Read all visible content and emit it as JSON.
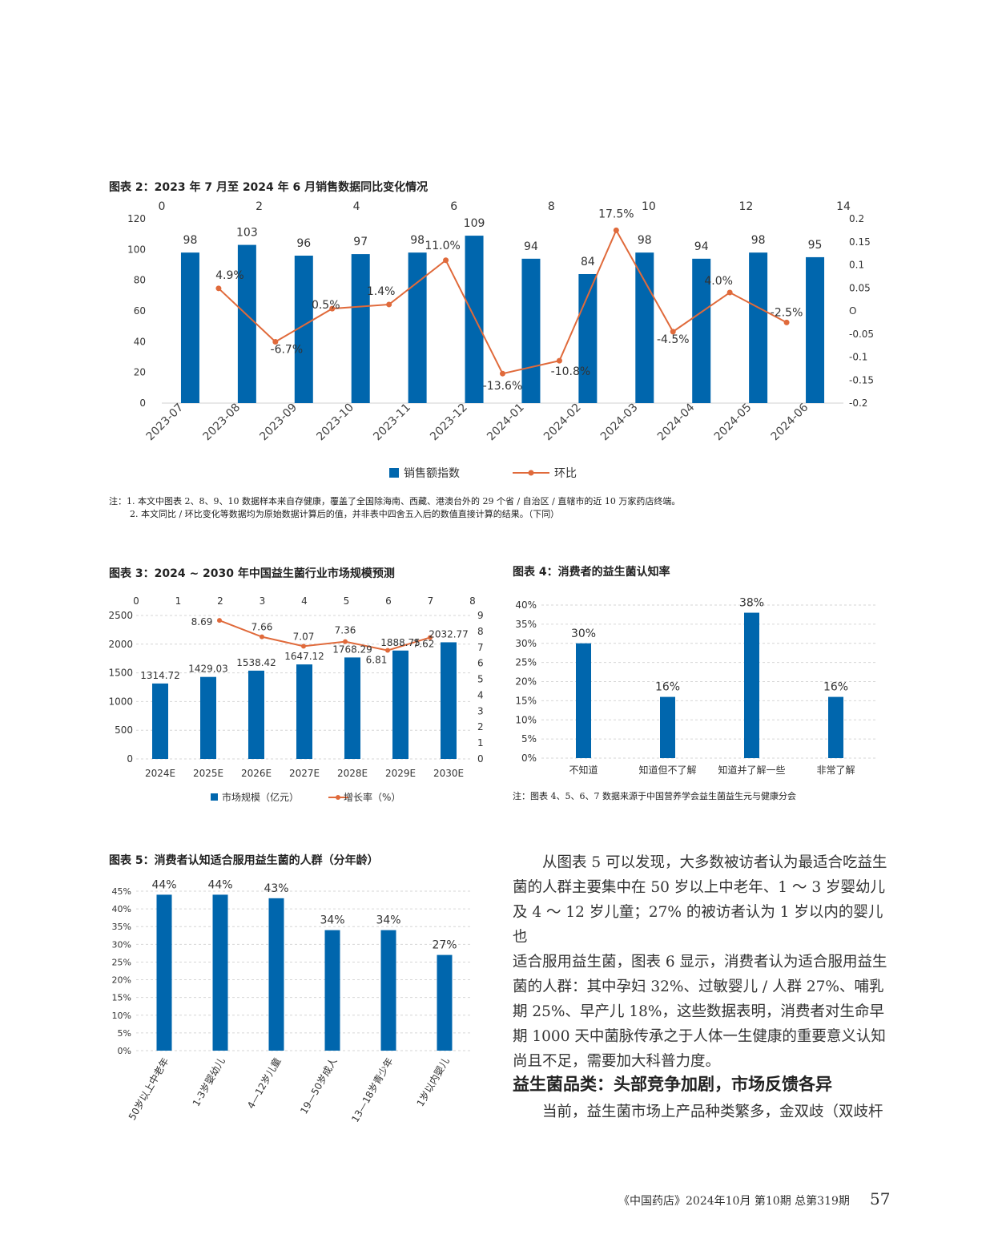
{
  "fig2": {
    "title": "图表 2：2023 年 7 月至 2024 年 6 月销售数据同比变化情况",
    "notes": [
      "注：1. 本文中图表 2、8、9、10 数据样本来自存健康，覆盖了全国除海南、西藏、港澳台外的 29 个省 / 自治区 / 直辖市的近 10 万家药店终端。",
      "2. 本文同比 / 环比变化等数据均为原始数据计算后的值，并非表中四舍五入后的数值直接计算的结果。（下同）"
    ],
    "chart_data": {
      "type": "bar",
      "categories": [
        "2023-07",
        "2023-08",
        "2023-09",
        "2023-10",
        "2023-11",
        "2023-12",
        "2024-01",
        "2024-02",
        "2024-03",
        "2024-04",
        "2024-05",
        "2024-06"
      ],
      "series": [
        {
          "name": "销售额指数",
          "type": "bar",
          "axis": "left",
          "values": [
            98,
            103,
            96,
            97,
            98,
            109,
            94,
            84,
            98,
            94,
            98,
            95
          ],
          "labels": [
            "98",
            "103",
            "96",
            "97",
            "98",
            "109",
            "94",
            "84",
            "98",
            "94",
            "98",
            "95"
          ]
        },
        {
          "name": "环比",
          "type": "line",
          "axis": "right",
          "values": [
            null,
            0.049,
            -0.067,
            0.005,
            0.014,
            0.11,
            -0.136,
            -0.108,
            0.175,
            -0.045,
            0.04,
            -0.025
          ],
          "labels": [
            "",
            "4.9%",
            "-6.7%",
            "0.5%",
            "1.4%",
            "11.0%",
            "-13.6%",
            "-10.8%",
            "17.5%",
            "-4.5%",
            "4.0%",
            "-2.5%"
          ]
        }
      ],
      "ylim_left": [
        0,
        120
      ],
      "yticks_left": [
        "0",
        "20",
        "40",
        "60",
        "80",
        "100",
        "120"
      ],
      "ylim_right": [
        -0.2,
        0.2
      ],
      "yticks_right": [
        "-0.2",
        "-0.15",
        "-0.1",
        "-0.05",
        "O",
        "0.05",
        "0.1",
        "0.15",
        "0.2"
      ],
      "xticks_top": [
        "0",
        "2",
        "4",
        "6",
        "8",
        "10",
        "12",
        "14"
      ],
      "bar_color": "#0066ad",
      "line_color": "#e06a3b",
      "legend": [
        "销售额指数",
        "环比"
      ],
      "legend_position": "bottom"
    }
  },
  "fig3": {
    "title": "图表 3：2024 ~ 2030 年中国益生菌行业市场规模预测",
    "chart_data": {
      "type": "bar",
      "categories": [
        "2024E",
        "2025E",
        "2026E",
        "2027E",
        "2028E",
        "2029E",
        "2030E"
      ],
      "series": [
        {
          "name": "市场规模（亿元）",
          "type": "bar",
          "axis": "left",
          "values": [
            1314.72,
            1429.03,
            1538.42,
            1647.12,
            1768.29,
            1888.75,
            2032.77
          ],
          "labels": [
            "1314.72",
            "1429.03",
            "1538.42",
            "1647.12",
            "1768.29",
            "1888.75",
            "2032.77"
          ]
        },
        {
          "name": "增长率（%）",
          "type": "line",
          "axis": "right",
          "values": [
            null,
            8.69,
            7.66,
            7.07,
            7.36,
            6.81,
            7.62
          ],
          "labels": [
            "",
            "8.69",
            "7.66",
            "7.07",
            "7.36",
            "6.81",
            "7.62"
          ]
        }
      ],
      "ylim_left": [
        0,
        2500
      ],
      "yticks_left": [
        "0",
        "500",
        "1000",
        "1500",
        "2000",
        "2500"
      ],
      "ylim_right": [
        0,
        9
      ],
      "yticks_right": [
        "0",
        "1",
        "2",
        "3",
        "4",
        "5",
        "6",
        "7",
        "8",
        "9"
      ],
      "xticks_top": [
        "0",
        "1",
        "2",
        "3",
        "4",
        "5",
        "6",
        "7",
        "8"
      ],
      "bar_color": "#0066ad",
      "line_color": "#e06a3b",
      "legend": [
        "市场规模（亿元）",
        "增长率（%）"
      ],
      "legend_position": "bottom"
    }
  },
  "fig4": {
    "title": "图表 4：消费者的益生菌认知率",
    "note": "注：图表 4、5、6、7 数据来源于中国营养学会益生菌益生元与健康分会",
    "chart_data": {
      "type": "bar",
      "categories": [
        "不知道",
        "知道但不了解",
        "知道并了解一些",
        "非常了解"
      ],
      "values": [
        30,
        16,
        38,
        16
      ],
      "labels": [
        "30%",
        "16%",
        "38%",
        "16%"
      ],
      "ylim": [
        0,
        40
      ],
      "yticks": [
        "0%",
        "5%",
        "10%",
        "15%",
        "20%",
        "25%",
        "30%",
        "35%",
        "40%"
      ],
      "bar_color": "#0066ad"
    }
  },
  "fig5": {
    "title": "图表 5：消费者认知适合服用益生菌的人群（分年龄）",
    "chart_data": {
      "type": "bar",
      "categories": [
        "50岁以上中老年",
        "1-3岁婴幼儿",
        "4—12岁儿童",
        "19—50岁成人",
        "13—18岁青少年",
        "1岁以内婴儿"
      ],
      "values": [
        44,
        44,
        43,
        34,
        34,
        27
      ],
      "labels": [
        "44%",
        "44%",
        "43%",
        "34%",
        "34%",
        "27%"
      ],
      "ylim": [
        0,
        45
      ],
      "yticks": [
        "0%",
        "5%",
        "10%",
        "15%",
        "20%",
        "25%",
        "30%",
        "35%",
        "40%",
        "45%"
      ],
      "bar_color": "#0066ad"
    }
  },
  "body": {
    "paragraph_lines": [
      "从图表 5 可以发现，大多数被访者认为最适合吃益生",
      "菌的人群主要集中在 50 岁以上中老年、1 ～ 3 岁婴幼儿",
      "及 4 ～ 12 岁儿童；27% 的被访者认为 1 岁以内的婴儿也",
      "适合服用益生菌，图表 6 显示，消费者认为适合服用益生",
      "菌的人群：其中孕妇 32%、过敏婴儿 / 人群 27%、哺乳",
      "期 25%、早产儿 18%，这些数据表明，消费者对生命早",
      "期 1000 天中菌脉传承之于人体一生健康的重要意义认知",
      "尚且不足，需要加大科普力度。"
    ],
    "section_heading": "益生菌品类：头部竞争加剧，市场反馈各异",
    "section_line": "当前，益生菌市场上产品种类繁多，金双歧（双歧杆"
  },
  "footer": {
    "text": "《中国药店》2024年10月  第10期  总第319期",
    "page_number": "57"
  }
}
